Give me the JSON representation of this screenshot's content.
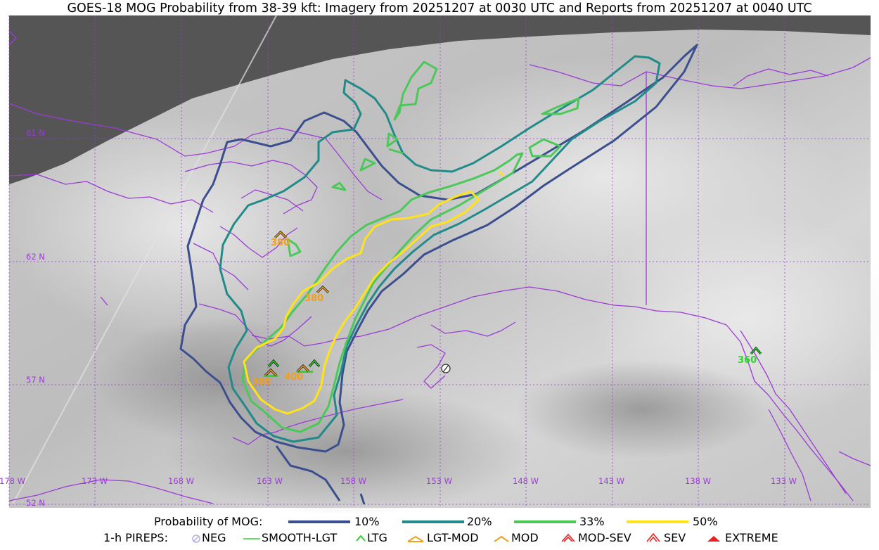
{
  "title": "GOES-18 MOG Probability from 38-39 kft: Imagery from 20251207 at 0030 UTC and Reports from 20251207 at 0040 UTC",
  "colors": {
    "contour_10": "#3b4f8f",
    "contour_20": "#238a8a",
    "contour_33": "#4cc85a",
    "contour_50": "#ffe31a",
    "coast": "#9b3bd6",
    "grid": "#9b3bd6",
    "report_orange": "#f0a020",
    "report_green": "#2fd52f"
  },
  "grid": {
    "lat_labels": [
      "61 N",
      "62 N",
      "57 N",
      "52 N"
    ],
    "lon_labels": [
      "178 W",
      "173 W",
      "168 W",
      "163 W",
      "158 W",
      "153 W",
      "148 W",
      "143 W",
      "138 W",
      "133 W"
    ]
  },
  "reports": [
    {
      "label": "380",
      "type": "LGT-MOD"
    },
    {
      "label": "380",
      "type": "LGT-MOD"
    },
    {
      "label": "380",
      "type": "LGT-MOD"
    },
    {
      "label": "400",
      "type": "LGT-MOD"
    },
    {
      "label": "360",
      "type": "LTG"
    }
  ],
  "legend": {
    "prob_title": "Probability of MOG:",
    "prob_items": [
      "10%",
      "20%",
      "33%",
      "50%"
    ],
    "pirep_title": "1-h PIREPS:",
    "pirep_items": [
      "NEG",
      "SMOOTH-LGT",
      "LTG",
      "LGT-MOD",
      "MOD",
      "MOD-SEV",
      "SEV",
      "EXTREME"
    ]
  }
}
